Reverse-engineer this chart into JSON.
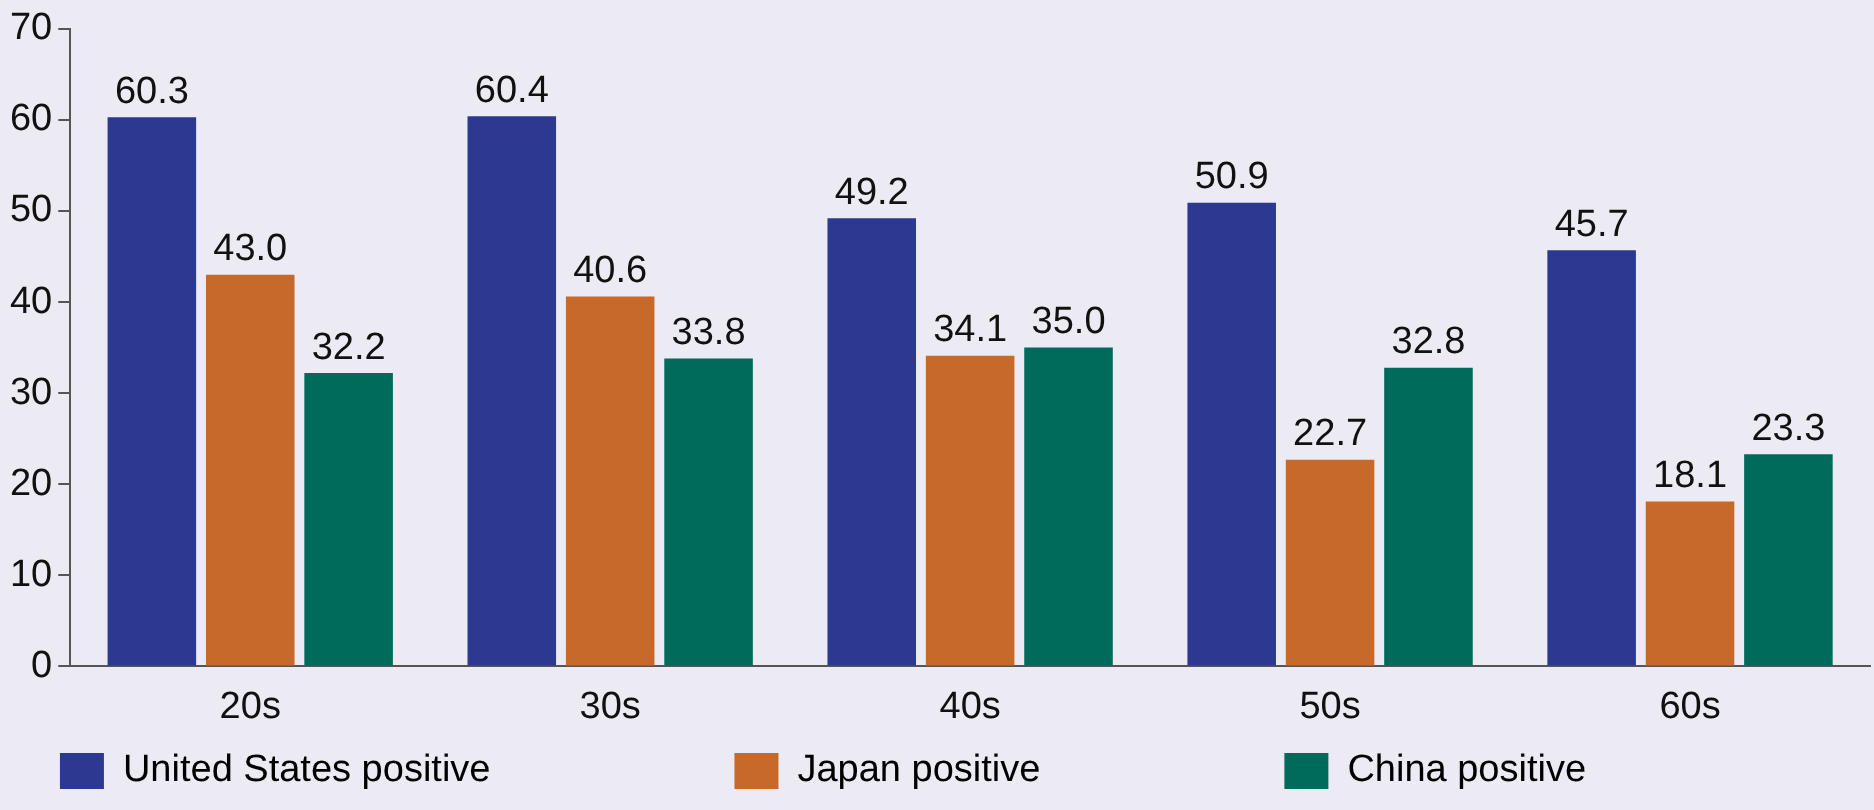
{
  "chart_data": {
    "type": "bar",
    "categories": [
      "20s",
      "30s",
      "40s",
      "50s",
      "60s"
    ],
    "series": [
      {
        "name": "United States positive",
        "color": "#2b3990",
        "values": [
          60.3,
          60.4,
          49.2,
          50.9,
          45.7
        ],
        "value_labels": [
          "60.3",
          "60.4",
          "49.2",
          "50.9",
          "45.7"
        ]
      },
      {
        "name": "Japan positive",
        "color": "#c8692c",
        "values": [
          43.0,
          40.6,
          34.1,
          22.7,
          18.1
        ],
        "value_labels": [
          "43.0",
          "40.6",
          "34.1",
          "22.7",
          "18.1"
        ]
      },
      {
        "name": "China positive",
        "color": "#006b5a",
        "values": [
          32.2,
          33.8,
          35.0,
          32.8,
          23.3
        ],
        "value_labels": [
          "32.2",
          "33.8",
          "35.0",
          "32.8",
          "23.3"
        ]
      }
    ],
    "ylim": [
      0,
      70
    ],
    "yticks": [
      0,
      10,
      20,
      30,
      40,
      50,
      60,
      70
    ],
    "grid": false,
    "legend": "bottom"
  }
}
